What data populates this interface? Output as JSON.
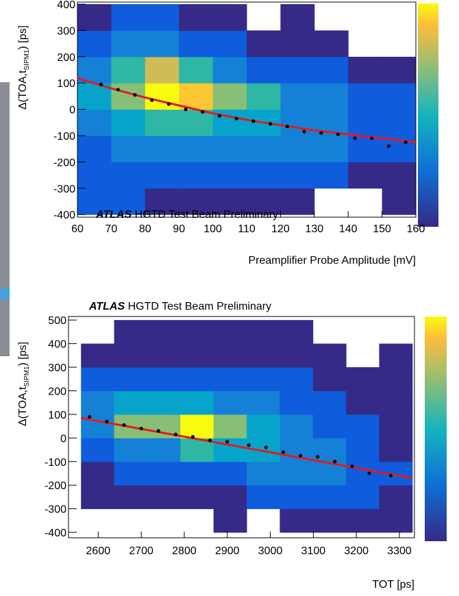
{
  "chart_data": [
    {
      "type": "heatmap",
      "annotation": {
        "bold": "ATLAS",
        "text": "HGTD Test Beam Preliminary"
      },
      "xlabel": "Preamplifier Probe Amplitude [mV]",
      "ylabel": {
        "text": "Δ(TOA,t",
        "sub": "SIPM1",
        "tail": ") [ps]"
      },
      "xlim": [
        60,
        160
      ],
      "ylim": [
        -410,
        408
      ],
      "xticks": [
        60,
        70,
        80,
        90,
        100,
        110,
        120,
        130,
        140,
        150,
        160
      ],
      "yticks": [
        -400,
        -300,
        -200,
        -100,
        0,
        100,
        200,
        300,
        400
      ],
      "xbins": [
        60,
        70,
        80,
        90,
        100,
        110,
        120,
        130,
        140,
        150,
        160
      ],
      "ybins": [
        -400,
        -300,
        -200,
        -100,
        0,
        100,
        200,
        300,
        400
      ],
      "z": [
        [
          2,
          2,
          1,
          1,
          1,
          1,
          1,
          0,
          0,
          1
        ],
        [
          2,
          2,
          2,
          2,
          2,
          2,
          2,
          2,
          1,
          1
        ],
        [
          2,
          3,
          3,
          3,
          3,
          3,
          3,
          3,
          2,
          2
        ],
        [
          3,
          4,
          5,
          5,
          4,
          4,
          3,
          3,
          2,
          2
        ],
        [
          4,
          6,
          9,
          8,
          6,
          5,
          3,
          3,
          2,
          2
        ],
        [
          3,
          5,
          7,
          5,
          3,
          2,
          2,
          2,
          1,
          1
        ],
        [
          2,
          3,
          3,
          2,
          2,
          1,
          1,
          1,
          0,
          0
        ],
        [
          1,
          2,
          2,
          1,
          1,
          0,
          1,
          0,
          0,
          0
        ]
      ],
      "profile": {
        "x": [
          67,
          72,
          77,
          82,
          87,
          92,
          97,
          102,
          107,
          112,
          117,
          122,
          127,
          132,
          137,
          142,
          147,
          152,
          157
        ],
        "y": [
          95,
          75,
          55,
          35,
          20,
          0,
          -10,
          -25,
          -35,
          -45,
          -55,
          -65,
          -85,
          -90,
          -95,
          -110,
          -110,
          -140,
          -125
        ],
        "color": "#000000"
      },
      "fit": {
        "x": [
          60,
          70,
          80,
          90,
          100,
          110,
          120,
          130,
          140,
          150,
          160
        ],
        "y": [
          118,
          80,
          45,
          15,
          -15,
          -40,
          -60,
          -80,
          -95,
          -110,
          -125
        ],
        "color": "#e41a1c"
      }
    },
    {
      "type": "heatmap",
      "annotation": {
        "bold": "ATLAS",
        "text": "HGTD Test Beam Preliminary"
      },
      "xlabel": "TOT [ps]",
      "ylabel": {
        "text": "Δ(TOA,t",
        "sub": "SIPM1",
        "tail": ") [ps]"
      },
      "xlim": [
        2531,
        3335
      ],
      "ylim": [
        -423,
        515
      ],
      "xticks": [
        2600,
        2700,
        2800,
        2900,
        3000,
        3100,
        3200,
        3300
      ],
      "yticks": [
        -400,
        -300,
        -200,
        -100,
        0,
        100,
        200,
        300,
        400,
        500
      ],
      "xbins": [
        2560,
        2637,
        2714,
        2791,
        2868,
        2945,
        3022,
        3099,
        3176,
        3253,
        3330
      ],
      "ybins": [
        -400,
        -300,
        -200,
        -100,
        0,
        100,
        200,
        300,
        400,
        500
      ],
      "z": [
        [
          0,
          0,
          0,
          0,
          1,
          0,
          1,
          1,
          1,
          1
        ],
        [
          1,
          1,
          1,
          1,
          1,
          2,
          2,
          2,
          2,
          1
        ],
        [
          1,
          2,
          2,
          2,
          2,
          3,
          3,
          3,
          2,
          2
        ],
        [
          2,
          3,
          3,
          5,
          4,
          4,
          3,
          3,
          2,
          1
        ],
        [
          3,
          6,
          6,
          9,
          6,
          4,
          3,
          2,
          2,
          1
        ],
        [
          3,
          4,
          4,
          4,
          3,
          3,
          2,
          2,
          1,
          1
        ],
        [
          2,
          2,
          2,
          2,
          2,
          2,
          2,
          1,
          1,
          1
        ],
        [
          1,
          1,
          1,
          1,
          1,
          1,
          1,
          1,
          0,
          1
        ],
        [
          0,
          1,
          1,
          1,
          1,
          1,
          1,
          0,
          0,
          0
        ]
      ],
      "profile": {
        "x": [
          2580,
          2620,
          2660,
          2700,
          2740,
          2780,
          2820,
          2860,
          2900,
          2950,
          2990,
          3030,
          3070,
          3110,
          3150,
          3190,
          3230,
          3280
        ],
        "y": [
          90,
          70,
          55,
          40,
          30,
          15,
          5,
          -10,
          -15,
          -30,
          -40,
          -60,
          -75,
          -80,
          -100,
          -120,
          -150,
          -160
        ],
        "color": "#000000"
      },
      "fit": {
        "x": [
          2560,
          3330
        ],
        "y": [
          85,
          -170
        ],
        "color": "#e41a1c"
      }
    }
  ]
}
